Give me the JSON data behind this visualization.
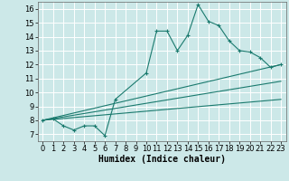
{
  "xlabel": "Humidex (Indice chaleur)",
  "background_color": "#cce8e8",
  "grid_color": "#ffffff",
  "line_color": "#1a7a6e",
  "xlim": [
    -0.5,
    23.5
  ],
  "ylim": [
    6.5,
    16.5
  ],
  "yticks": [
    7,
    8,
    9,
    10,
    11,
    12,
    13,
    14,
    15,
    16
  ],
  "xticks": [
    0,
    1,
    2,
    3,
    4,
    5,
    6,
    7,
    8,
    9,
    10,
    11,
    12,
    13,
    14,
    15,
    16,
    17,
    18,
    19,
    20,
    21,
    22,
    23
  ],
  "series": [
    {
      "x": [
        0,
        1,
        2,
        3,
        4,
        5,
        6,
        7,
        10,
        11,
        12,
        13,
        14,
        15,
        16,
        17,
        18,
        19,
        20,
        21,
        22,
        23
      ],
      "y": [
        8.0,
        8.1,
        7.6,
        7.3,
        7.6,
        7.6,
        6.9,
        9.5,
        11.4,
        14.4,
        14.4,
        13.0,
        14.1,
        16.3,
        15.1,
        14.8,
        13.7,
        13.0,
        12.9,
        12.5,
        11.8,
        12.0
      ],
      "marker": true
    },
    {
      "x": [
        0,
        23
      ],
      "y": [
        8.0,
        12.0
      ],
      "marker": false
    },
    {
      "x": [
        0,
        23
      ],
      "y": [
        8.0,
        10.8
      ],
      "marker": false
    },
    {
      "x": [
        0,
        23
      ],
      "y": [
        8.0,
        9.5
      ],
      "marker": false
    }
  ],
  "tick_fontsize": 6,
  "xlabel_fontsize": 7
}
